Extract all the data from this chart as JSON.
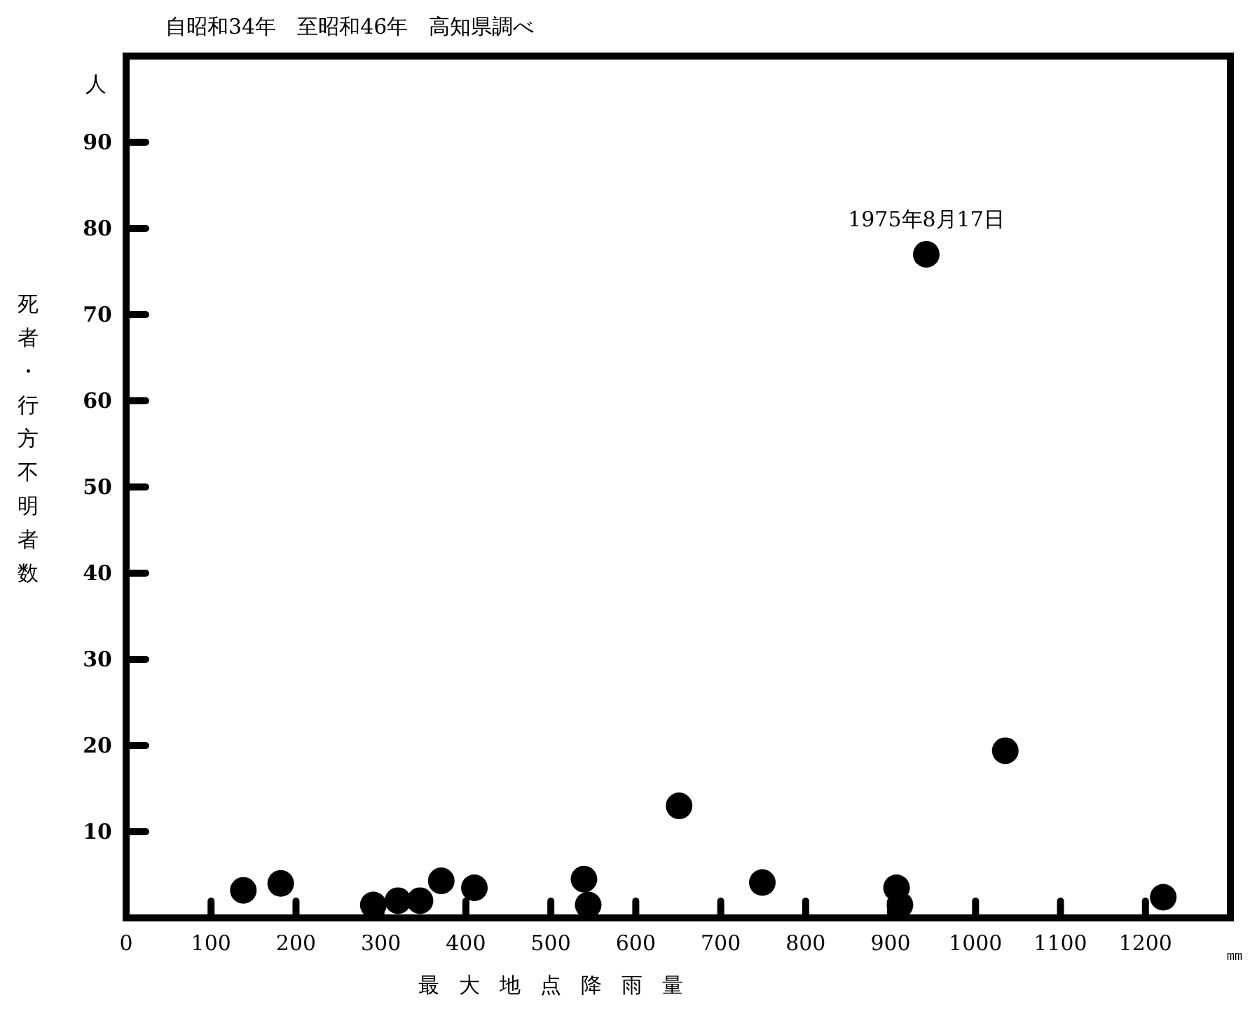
{
  "chart_data": {
    "type": "scatter",
    "title": "自昭和34年　至昭和46年　高知県調べ",
    "xlabel": "最大地点降雨量",
    "ylabel": "死者・行方不明者数",
    "annotations": [
      {
        "text": "1975年8月17日",
        "x": 942,
        "y": 77
      },
      "人",
      "㎜"
    ],
    "xlim": [
      0,
      1300
    ],
    "ylim": [
      0,
      100
    ],
    "xticks": [
      0,
      100,
      200,
      300,
      400,
      500,
      600,
      700,
      800,
      900,
      1000,
      1100,
      1200
    ],
    "yticks": [
      10,
      20,
      30,
      40,
      50,
      60,
      70,
      80,
      90
    ],
    "grid": false,
    "marker": "circle",
    "series": [
      {
        "color": "#000000",
        "x": [
          138,
          182,
          291,
          320,
          346,
          371,
          410,
          539,
          544,
          651,
          749,
          907,
          911,
          942,
          1035,
          1221
        ],
        "values": [
          3.2,
          4,
          1.5,
          2,
          2,
          4.3,
          3.5,
          4.5,
          1.5,
          13,
          4.1,
          3.5,
          1.5,
          77,
          19.4,
          2.4
        ]
      }
    ]
  }
}
